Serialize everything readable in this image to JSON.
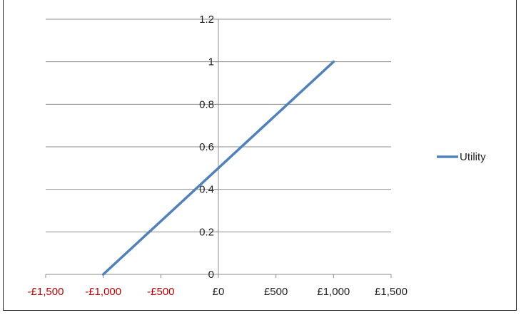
{
  "page": {
    "title": ""
  },
  "chart_data": {
    "type": "line",
    "title": "",
    "xlabel": "",
    "ylabel": "",
    "x_categories": [
      "-£1,500",
      "-£1,000",
      "-£500",
      "£0",
      "£500",
      "£1,000",
      "£1,500"
    ],
    "x_label_colors": [
      "#c00000",
      "#c00000",
      "#c00000",
      "#222222",
      "#222222",
      "#222222",
      "#222222"
    ],
    "xlim": [
      -1500,
      1500
    ],
    "ylim": [
      0,
      1.2
    ],
    "y_ticks": [
      0,
      0.2,
      0.4,
      0.6,
      0.8,
      1,
      1.2
    ],
    "y_tick_labels": [
      "0",
      "0.2",
      "0.4",
      "0.6",
      "0.8",
      "1",
      "1.2"
    ],
    "grid": "horizontal",
    "legend_position": "right",
    "series": [
      {
        "name": "Utility",
        "color": "#4f81bd",
        "x": [
          -1000,
          1000
        ],
        "y": [
          0,
          1
        ]
      }
    ]
  }
}
